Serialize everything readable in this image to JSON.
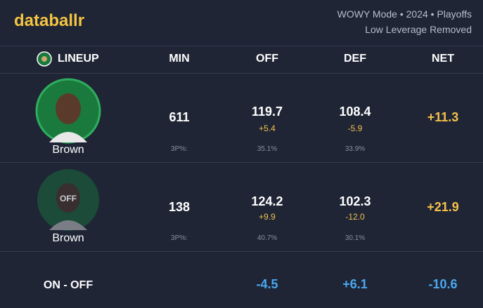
{
  "header": {
    "brand": "databallr",
    "mode": "WOWY Mode • 2024 • Playoffs",
    "note": "Low Leverage Removed"
  },
  "table": {
    "columns": [
      "LINEUP",
      "MIN",
      "OFF",
      "DEF",
      "NET"
    ],
    "rows": [
      {
        "player": "Brown",
        "min": "611",
        "off": "119.7",
        "off_diff": "+5.4",
        "def": "108.4",
        "def_diff": "-5.9",
        "net": "+11.3",
        "shot_label": "3P%:",
        "off_3p": "35.1%",
        "def_3p": "33.9%"
      },
      {
        "player": "Brown",
        "badge": "OFF",
        "min": "138",
        "off": "124.2",
        "off_diff": "+9.9",
        "def": "102.3",
        "def_diff": "-12.0",
        "net": "+21.9",
        "shot_label": "3P%:",
        "off_3p": "40.7%",
        "def_3p": "30.1%"
      }
    ],
    "summary": {
      "label": "ON - OFF",
      "off": "-4.5",
      "def": "+6.1",
      "net": "-10.6"
    }
  }
}
